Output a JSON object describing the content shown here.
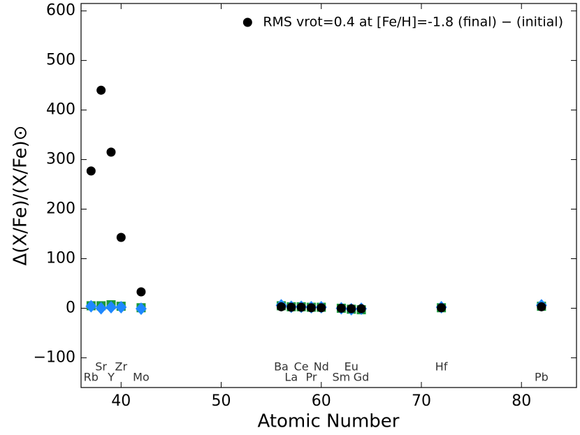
{
  "chart_data": {
    "type": "scatter",
    "xlabel": "Atomic Number",
    "ylabel": "Δ(X/Fe)/(X/Fe)⊙",
    "xlim": [
      36,
      85.5
    ],
    "ylim": [
      -160,
      615
    ],
    "xticks": [
      40,
      50,
      60,
      70,
      80
    ],
    "yticks": [
      {
        "value": -100,
        "label": "−100"
      },
      0,
      100,
      200,
      300,
      400,
      500,
      600
    ],
    "legend_position": "upper right",
    "x": [
      37,
      38,
      39,
      40,
      42,
      56,
      57,
      58,
      59,
      60,
      62,
      63,
      64,
      72,
      82
    ],
    "series": [
      {
        "marker": "square",
        "color": "#1a9a3a",
        "values": [
          5,
          5,
          7,
          4,
          1,
          5,
          3,
          3,
          2,
          2,
          0,
          -2,
          -3,
          1,
          4
        ]
      },
      {
        "marker": "diamond",
        "color": "#1e88ff",
        "values": [
          4,
          0,
          2,
          2,
          -1,
          6,
          3,
          3,
          2,
          2,
          0,
          -2,
          -1,
          2,
          6
        ]
      },
      {
        "name": "RMS vrot=0.4 at [Fe/H]=-1.8 (final) − (initial)",
        "marker": "circle",
        "color": "#000000",
        "values": [
          277,
          440,
          315,
          143,
          33,
          3,
          2,
          2,
          1,
          1,
          0,
          -1,
          -1,
          1,
          3
        ]
      }
    ],
    "element_labels_upper": [
      {
        "label": "Sr",
        "x": 38
      },
      {
        "label": "Zr",
        "x": 40
      },
      {
        "label": "Ba",
        "x": 56
      },
      {
        "label": "Ce",
        "x": 58
      },
      {
        "label": "Nd",
        "x": 60
      },
      {
        "label": "Eu",
        "x": 63
      },
      {
        "label": "Hf",
        "x": 72
      }
    ],
    "element_labels_lower": [
      {
        "label": "Rb",
        "x": 37
      },
      {
        "label": "Y",
        "x": 39
      },
      {
        "label": "Mo",
        "x": 42
      },
      {
        "label": "La",
        "x": 57
      },
      {
        "label": "Pr",
        "x": 59
      },
      {
        "label": "Sm",
        "x": 62
      },
      {
        "label": "Gd",
        "x": 64
      },
      {
        "label": "Pb",
        "x": 82
      }
    ]
  }
}
